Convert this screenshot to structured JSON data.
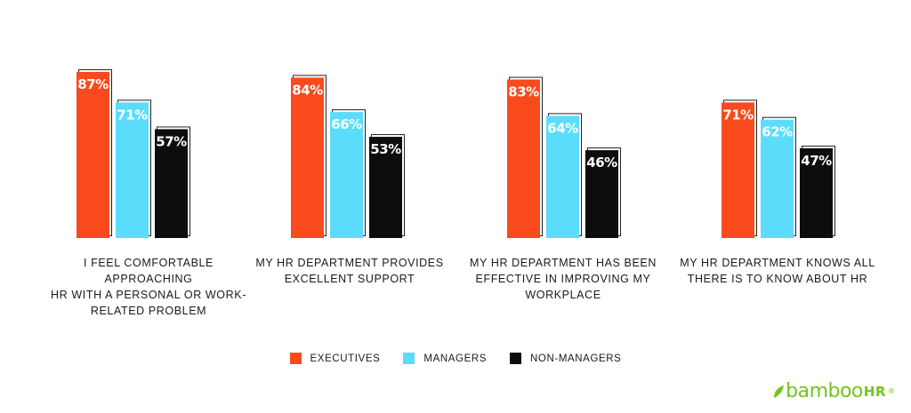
{
  "chart_data": {
    "type": "bar",
    "categories": [
      "I FEEL COMFORTABLE APPROACHING HR WITH A PERSONAL OR WORK-RELATED PROBLEM",
      "MY HR DEPARTMENT PROVIDES EXCELLENT SUPPORT",
      "MY HR DEPARTMENT HAS BEEN EFFECTIVE IN IMPROVING MY WORKPLACE",
      "MY HR DEPARTMENT KNOWS ALL THERE IS TO KNOW ABOUT HR"
    ],
    "series": [
      {
        "name": "EXECUTIVES",
        "values": [
          87,
          84,
          83,
          71
        ],
        "color": "#f94a1e",
        "label_color": "#ffffff"
      },
      {
        "name": "MANAGERS",
        "values": [
          71,
          66,
          64,
          62
        ],
        "color": "#5cdcfb",
        "label_color": "#ffffff"
      },
      {
        "name": "NON-MANAGERS",
        "values": [
          57,
          53,
          46,
          47
        ],
        "color": "#0d0d0d",
        "label_color": "#ffffff"
      }
    ],
    "data_labels": [
      [
        "87%",
        "84%",
        "83%",
        "71%"
      ],
      [
        "71%",
        "66%",
        "64%",
        "62%"
      ],
      [
        "57%",
        "53%",
        "46%",
        "47%"
      ]
    ],
    "ylim": [
      0,
      100
    ],
    "grid": false,
    "legend_position": "bottom-center",
    "title": "",
    "xlabel": "",
    "ylabel": ""
  },
  "category_lines": [
    [
      "I FEEL COMFORTABLE APPROACHING",
      "HR WITH A PERSONAL OR WORK-",
      "RELATED PROBLEM"
    ],
    [
      "MY HR DEPARTMENT PROVIDES",
      "EXCELLENT SUPPORT"
    ],
    [
      "MY HR DEPARTMENT HAS BEEN",
      "EFFECTIVE IN IMPROVING MY",
      "WORKPLACE"
    ],
    [
      "MY HR DEPARTMENT KNOWS ALL",
      "THERE IS TO KNOW ABOUT HR"
    ]
  ],
  "legend": [
    {
      "label": "EXECUTIVES",
      "color": "#f94a1e"
    },
    {
      "label": "MANAGERS",
      "color": "#5cdcfb"
    },
    {
      "label": "NON-MANAGERS",
      "color": "#0d0d0d"
    }
  ],
  "brand": {
    "logo_text": "bamboo",
    "logo_hr": "HR",
    "logo_reg": "®",
    "color": "#73c41d"
  }
}
